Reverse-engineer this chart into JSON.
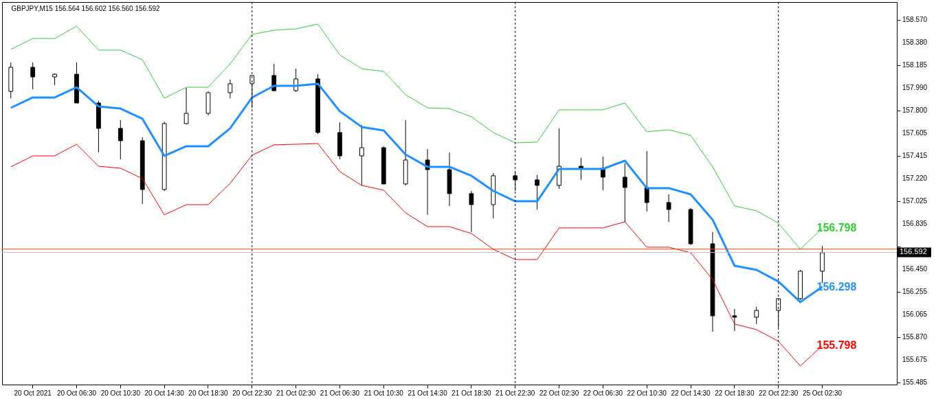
{
  "chart_data": {
    "type": "candlestick",
    "title": "GBPJPY,M15  156.564 156.602 156.560 156.592",
    "categories": [
      null,
      "20 Oct 2021",
      null,
      "20 Oct 06:30",
      null,
      "20 Oct 10:30",
      null,
      "20 Oct 14:30",
      null,
      "20 Oct 18:30",
      null,
      "20 Oct 22:30",
      null,
      "21 Oct 02:30",
      null,
      "21 Oct 06:30",
      null,
      "21 Oct 10:30",
      null,
      "21 Oct 14:30",
      null,
      "21 Oct 18:30",
      null,
      "21 Oct 22:30",
      null,
      "22 Oct 02:30",
      null,
      "22 Oct 06:30",
      null,
      "22 Oct 10:30",
      null,
      "22 Oct 14:30",
      null,
      "22 Oct 18:30",
      null,
      "22 Oct 22:30",
      null,
      "25 Oct 02:30",
      null,
      null,
      null
    ],
    "ohlc": [
      [
        157.962,
        158.208,
        157.904,
        158.167
      ],
      [
        158.167,
        158.208,
        157.98,
        158.085
      ],
      [
        158.085,
        158.114,
        158.015,
        158.108
      ],
      [
        158.108,
        158.208,
        157.863,
        157.863
      ],
      [
        157.863,
        157.881,
        157.442,
        157.647
      ],
      [
        157.647,
        157.717,
        157.384,
        157.542
      ],
      [
        157.542,
        157.571,
        157.004,
        157.127
      ],
      [
        157.127,
        157.705,
        157.115,
        157.688
      ],
      [
        157.688,
        157.992,
        157.68,
        157.775
      ],
      [
        157.775,
        157.962,
        157.758,
        157.951
      ],
      [
        157.951,
        158.062,
        157.904,
        158.027
      ],
      [
        158.027,
        158.097,
        157.822,
        158.097
      ],
      [
        158.097,
        158.196,
        157.962,
        157.968
      ],
      [
        157.968,
        158.155,
        157.957,
        158.068
      ],
      [
        158.068,
        158.108,
        157.6,
        157.612
      ],
      [
        157.612,
        157.699,
        157.384,
        157.413
      ],
      [
        157.413,
        157.676,
        157.162,
        157.483
      ],
      [
        157.483,
        157.495,
        157.174,
        157.174
      ],
      [
        157.174,
        157.717,
        157.162,
        157.378
      ],
      [
        157.378,
        157.471,
        156.911,
        157.296
      ],
      [
        157.296,
        157.442,
        156.987,
        157.092
      ],
      [
        157.092,
        157.115,
        156.765,
        156.998
      ],
      [
        156.998,
        157.267,
        156.881,
        157.244
      ],
      [
        157.244,
        157.279,
        157.115,
        157.209
      ],
      [
        157.209,
        157.25,
        156.957,
        157.162
      ],
      [
        157.162,
        157.647,
        157.133,
        157.325
      ],
      [
        157.325,
        157.396,
        157.209,
        157.308
      ],
      [
        157.308,
        157.407,
        157.121,
        157.232
      ],
      [
        157.232,
        157.349,
        156.852,
        157.144
      ],
      [
        157.144,
        157.454,
        156.94,
        157.016
      ],
      [
        157.016,
        157.086,
        156.852,
        156.957
      ],
      [
        156.957,
        156.969,
        156.654,
        156.665
      ],
      [
        156.665,
        156.765,
        155.917,
        156.052
      ],
      [
        156.052,
        156.11,
        155.923,
        156.04
      ],
      [
        156.04,
        156.128,
        155.982,
        156.098
      ],
      [
        156.098,
        156.198,
        155.952,
        156.198
      ],
      [
        156.198,
        156.443,
        156.186,
        156.432
      ],
      [
        156.432,
        156.648,
        156.332,
        156.589
      ],
      null,
      null,
      null
    ],
    "series": [
      {
        "type": "line",
        "color": "#32cd32",
        "values": [
          158.319,
          158.412,
          158.412,
          158.517,
          158.313,
          158.313,
          158.231,
          157.904,
          157.997,
          157.997,
          158.196,
          158.447,
          158.482,
          158.494,
          158.535,
          158.272,
          158.155,
          158.132,
          157.933,
          157.822,
          157.816,
          157.746,
          157.612,
          157.524,
          157.53,
          157.805,
          157.805,
          157.805,
          157.863,
          157.618,
          157.635,
          157.588,
          157.32,
          156.987,
          156.946,
          156.841,
          156.618,
          156.798,
          null,
          null,
          null
        ]
      },
      {
        "type": "line",
        "color": "#1e90ff",
        "values": [
          157.822,
          157.91,
          157.91,
          157.997,
          157.834,
          157.816,
          157.729,
          157.413,
          157.495,
          157.495,
          157.647,
          157.91,
          158.009,
          158.009,
          158.027,
          157.793,
          157.659,
          157.629,
          157.425,
          157.32,
          157.32,
          157.244,
          157.115,
          157.027,
          157.027,
          157.302,
          157.302,
          157.302,
          157.372,
          157.139,
          157.139,
          157.086,
          156.87,
          156.478,
          156.443,
          156.344,
          156.169,
          156.298,
          null,
          null,
          null
        ]
      },
      {
        "type": "line",
        "color": "#ff0000",
        "values": [
          157.32,
          157.413,
          157.413,
          157.512,
          157.325,
          157.308,
          157.22,
          156.911,
          156.998,
          156.998,
          157.179,
          157.419,
          157.507,
          157.512,
          157.518,
          157.279,
          157.162,
          157.121,
          156.928,
          156.811,
          156.811,
          156.753,
          156.618,
          156.531,
          156.531,
          156.8,
          156.8,
          156.8,
          156.852,
          156.636,
          156.636,
          156.589,
          156.361,
          155.982,
          155.935,
          155.836,
          155.625,
          155.798,
          null,
          null,
          null
        ]
      }
    ],
    "ylim": [
      155.467,
      158.722
    ],
    "yticks": [
      {
        "value": 158.57,
        "label": "158.570"
      },
      {
        "value": 158.38,
        "label": "158.380"
      },
      158.185,
      {
        "value": 157.99,
        "label": "157.990"
      },
      {
        "value": 157.8,
        "label": "157.800"
      },
      157.605,
      157.415,
      {
        "value": 157.22,
        "label": "157.220"
      },
      157.025,
      156.835,
      {
        "value": 156.64,
        "label": null
      },
      {
        "value": 156.45,
        "label": "156.450"
      },
      156.255,
      156.065,
      {
        "value": 155.87,
        "label": "155.870"
      },
      155.675,
      155.485
    ],
    "ref_lines": [
      {
        "axis": "x",
        "value": "20 Oct 22:30",
        "color": "#000000",
        "line_style": "dashed"
      },
      {
        "axis": "x",
        "value": "21 Oct 22:30",
        "color": "#000000",
        "line_style": "dashed"
      },
      {
        "axis": "x",
        "value": "22 Oct 22:30",
        "color": "#000000",
        "line_style": "dashed"
      },
      {
        "axis": "y",
        "value": 156.62,
        "color": "#ff4500"
      },
      {
        "axis": "y",
        "value": 156.592,
        "color": "#c0c0c0",
        "label": "156.592"
      }
    ],
    "annotations": [
      {
        "text": "156.798",
        "x": "25 Oct 02:30",
        "y": 156.798
      },
      {
        "text": "156.298",
        "x": "25 Oct 02:30",
        "y": 156.298
      },
      {
        "text": "155.798",
        "x": "25 Oct 02:30",
        "y": 155.798
      }
    ],
    "grid": false
  }
}
